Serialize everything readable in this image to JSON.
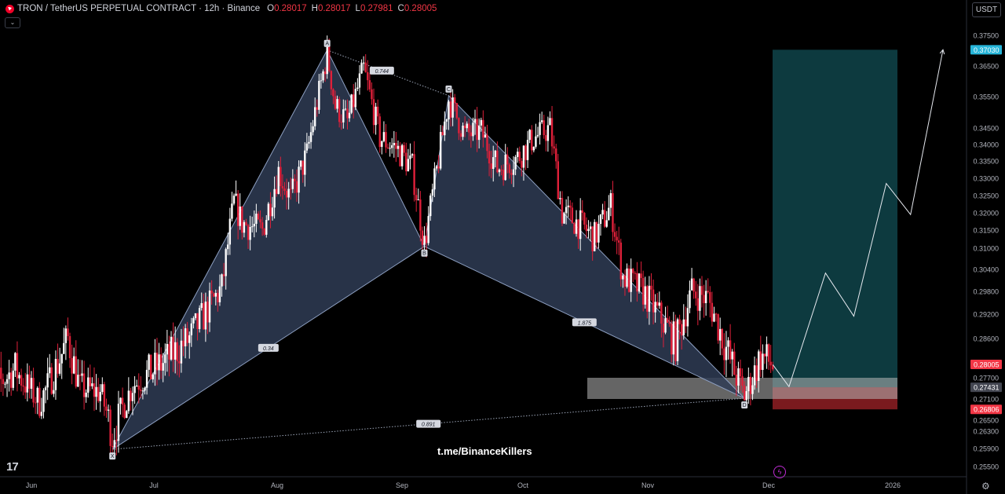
{
  "header": {
    "symbol": "TRON / TetherUS PERPETUAL CONTRACT · 12h · Binance",
    "o_label": "O",
    "o_value": "0.28017",
    "h_label": "H",
    "h_value": "0.28017",
    "l_label": "L",
    "l_value": "0.27981",
    "c_label": "C",
    "c_value": "0.28005",
    "collapse_icon": "chevron-down-icon"
  },
  "currency": "USDT",
  "watermark": "t.me/BinanceKillers",
  "logo_icon": "tradingview-logo",
  "colors": {
    "up": "#ffffff",
    "down": "#e0203a",
    "pattern_fill": "#2f3c55",
    "target_zone": "#0d3a3f",
    "stop_zone": "#7a1a1e",
    "price_label_bg": "#f23645",
    "target_label_bg": "#26b5d9",
    "entry_label_bg": "#434651"
  },
  "chart_data": {
    "type": "candlestick",
    "x_ticks": [
      "Jun",
      "Jul",
      "Aug",
      "Sep",
      "Oct",
      "Nov",
      "Dec",
      "2026"
    ],
    "y_ticks": [
      "0.37500",
      "0.36500",
      "0.35500",
      "0.34500",
      "0.34000",
      "0.33500",
      "0.33000",
      "0.32500",
      "0.32000",
      "0.31500",
      "0.31000",
      "0.30400",
      "0.29800",
      "0.29200",
      "0.28600",
      "0.27700",
      "0.27100",
      "0.26500",
      "0.26300",
      "0.25900",
      "0.25500"
    ],
    "price_labels": [
      {
        "value": "0.37030",
        "role": "target"
      },
      {
        "value": "0.28005",
        "role": "last"
      },
      {
        "value": "0.27431",
        "role": "entry"
      },
      {
        "value": "0.26806",
        "role": "stop"
      }
    ],
    "pattern": {
      "name": "harmonic XABCD",
      "points": [
        {
          "label": "X",
          "date": "2025-06-21",
          "price": 0.2588
        },
        {
          "label": "A",
          "date": "2025-08-13",
          "price": 0.3702
        },
        {
          "label": "B",
          "date": "2025-09-06",
          "price": 0.3105
        },
        {
          "label": "C",
          "date": "2025-09-12",
          "price": 0.3553
        },
        {
          "label": "D",
          "date": "2025-11-24",
          "price": 0.2712
        }
      ],
      "ratios": [
        {
          "value": "0.744",
          "between": "A-C"
        },
        {
          "value": "0.34",
          "between": "X-B"
        },
        {
          "value": "1.875",
          "between": "B-D"
        },
        {
          "value": "0.891",
          "between": "X-D"
        }
      ]
    },
    "position": {
      "entry": 0.27431,
      "target": 0.3703,
      "stop": 0.26806,
      "entry_zone": [
        0.271,
        0.277
      ]
    },
    "projection": [
      {
        "date": "2025-12-01",
        "price": 0.28
      },
      {
        "date": "2025-12-05",
        "price": 0.2745
      },
      {
        "date": "2025-12-14",
        "price": 0.303
      },
      {
        "date": "2025-12-21",
        "price": 0.2915
      },
      {
        "date": "2025-12-29",
        "price": 0.3285
      },
      {
        "date": "2026-01-04",
        "price": 0.3195
      },
      {
        "date": "2026-01-12",
        "price": 0.3703
      }
    ],
    "price_path": [
      {
        "date": "2025-05-20",
        "price": 0.272
      },
      {
        "date": "2025-05-28",
        "price": 0.279
      },
      {
        "date": "2025-06-03",
        "price": 0.27
      },
      {
        "date": "2025-06-10",
        "price": 0.286
      },
      {
        "date": "2025-06-13",
        "price": 0.274
      },
      {
        "date": "2025-06-18",
        "price": 0.273
      },
      {
        "date": "2025-06-21",
        "price": 0.262
      },
      {
        "date": "2025-06-26",
        "price": 0.275
      },
      {
        "date": "2025-07-03",
        "price": 0.28
      },
      {
        "date": "2025-07-10",
        "price": 0.286
      },
      {
        "date": "2025-07-18",
        "price": 0.299
      },
      {
        "date": "2025-07-21",
        "price": 0.323
      },
      {
        "date": "2025-07-23",
        "price": 0.317
      },
      {
        "date": "2025-07-28",
        "price": 0.315
      },
      {
        "date": "2025-08-01",
        "price": 0.332
      },
      {
        "date": "2025-08-04",
        "price": 0.324
      },
      {
        "date": "2025-08-08",
        "price": 0.337
      },
      {
        "date": "2025-08-13",
        "price": 0.369
      },
      {
        "date": "2025-08-15",
        "price": 0.352
      },
      {
        "date": "2025-08-18",
        "price": 0.347
      },
      {
        "date": "2025-08-22",
        "price": 0.364
      },
      {
        "date": "2025-08-26",
        "price": 0.342
      },
      {
        "date": "2025-08-30",
        "price": 0.339
      },
      {
        "date": "2025-09-03",
        "price": 0.333
      },
      {
        "date": "2025-09-06",
        "price": 0.311
      },
      {
        "date": "2025-09-09",
        "price": 0.332
      },
      {
        "date": "2025-09-12",
        "price": 0.354
      },
      {
        "date": "2025-09-16",
        "price": 0.343
      },
      {
        "date": "2025-09-20",
        "price": 0.344
      },
      {
        "date": "2025-09-24",
        "price": 0.333
      },
      {
        "date": "2025-09-29",
        "price": 0.336
      },
      {
        "date": "2025-10-03",
        "price": 0.342
      },
      {
        "date": "2025-10-07",
        "price": 0.345
      },
      {
        "date": "2025-10-10",
        "price": 0.32
      },
      {
        "date": "2025-10-14",
        "price": 0.317
      },
      {
        "date": "2025-10-18",
        "price": 0.313
      },
      {
        "date": "2025-10-22",
        "price": 0.322
      },
      {
        "date": "2025-10-25",
        "price": 0.302
      },
      {
        "date": "2025-10-30",
        "price": 0.298
      },
      {
        "date": "2025-11-04",
        "price": 0.29
      },
      {
        "date": "2025-11-07",
        "price": 0.285
      },
      {
        "date": "2025-11-11",
        "price": 0.298
      },
      {
        "date": "2025-11-15",
        "price": 0.296
      },
      {
        "date": "2025-11-19",
        "price": 0.285
      },
      {
        "date": "2025-11-24",
        "price": 0.272
      },
      {
        "date": "2025-11-28",
        "price": 0.282
      },
      {
        "date": "2025-12-01",
        "price": 0.28
      }
    ]
  }
}
